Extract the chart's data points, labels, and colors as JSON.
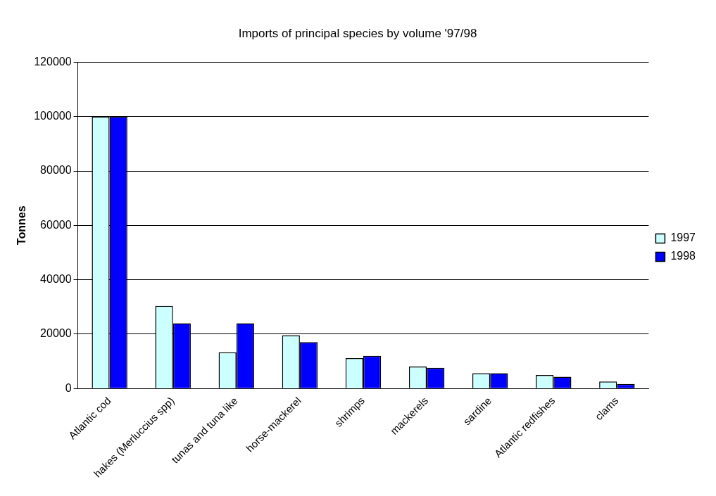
{
  "chart_data": {
    "type": "bar",
    "title": "Imports of principal species by volume '97/98",
    "ylabel": "Tonnes",
    "categories": [
      "Atlantic cod",
      "hakes (Merluccius spp)",
      "tunas and tuna like",
      "horse-mackerel",
      "shrimps",
      "mackerels",
      "sardine",
      "Atlantic redfishes",
      "clams"
    ],
    "series": [
      {
        "name": "1997",
        "color": "#ccffff",
        "values": [
          100000,
          30400,
          13300,
          19600,
          11200,
          8100,
          5600,
          5000,
          2600
        ]
      },
      {
        "name": "1998",
        "color": "#0000ff",
        "values": [
          100000,
          24000,
          24000,
          17100,
          12000,
          7600,
          5600,
          4300,
          1700
        ]
      }
    ],
    "ylim": [
      0,
      120000
    ],
    "yticks": [
      0,
      20000,
      40000,
      60000,
      80000,
      100000,
      120000
    ],
    "grid": "y",
    "legend": "right"
  }
}
